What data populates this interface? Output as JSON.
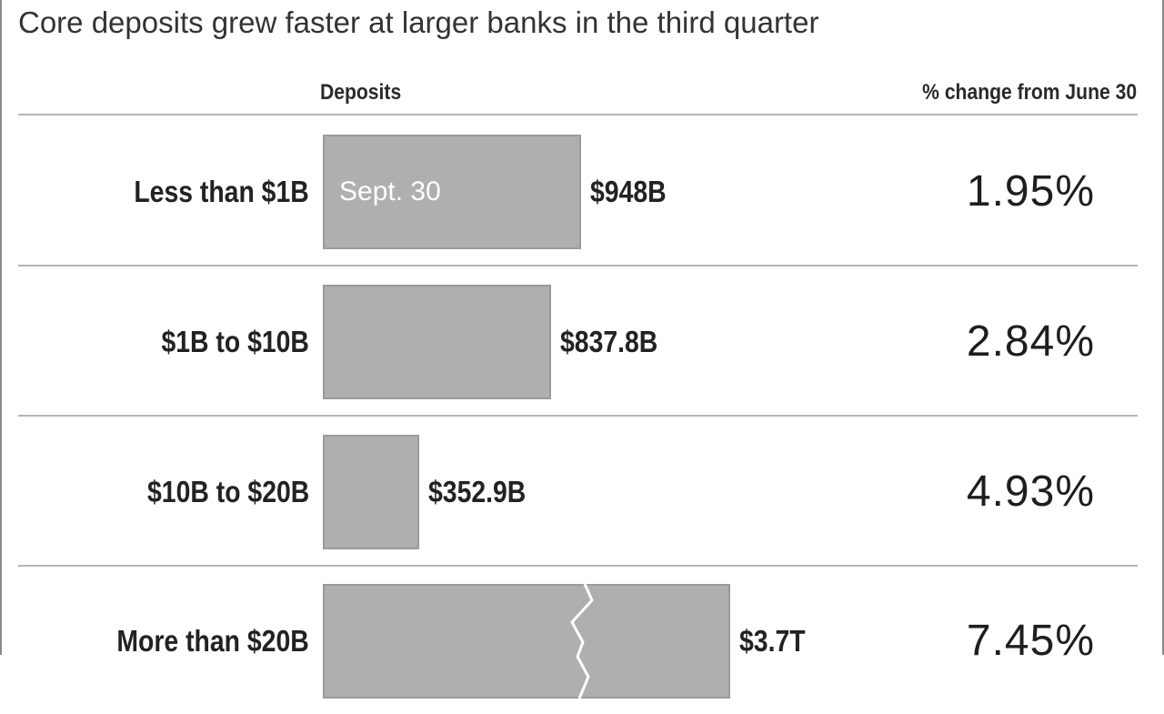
{
  "title": "Core deposits grew faster at larger banks in the third quarter",
  "headers": {
    "deposits": "Deposits",
    "change": "% change from June 30"
  },
  "colors": {
    "bar": "#afafaf",
    "bar_border": "#9a9a9a",
    "rule": "#b5b5b5",
    "text": "#222222"
  },
  "chart_data": {
    "type": "bar",
    "orientation": "horizontal",
    "axis_break": "on largest bar",
    "bar_annotation": "Sept. 30",
    "categories": [
      "Less than $1B",
      "$1B to $10B",
      "$10B to $20B",
      "More than $20B"
    ],
    "values": [
      948,
      837.8,
      352.9,
      3700
    ],
    "value_labels": [
      "$948B",
      "$837.8B",
      "$352.9B",
      "$3.7T"
    ],
    "pct_change": [
      "1.95%",
      "2.84%",
      "4.93%",
      "7.45%"
    ]
  }
}
